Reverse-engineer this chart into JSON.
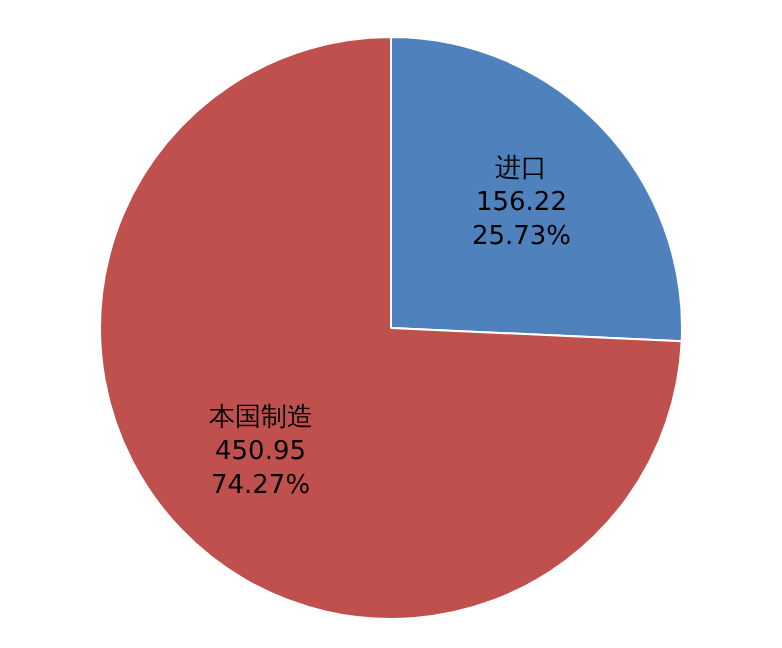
{
  "chart_data": {
    "type": "pie",
    "categories": [
      "进口",
      "本国制造"
    ],
    "values": [
      156.22,
      450.95
    ],
    "colors": [
      "#4f81bd",
      "#c0504d"
    ],
    "value_labels": [
      "156.22\n25.73%",
      "450.95\n74.27%"
    ],
    "legend": false
  }
}
